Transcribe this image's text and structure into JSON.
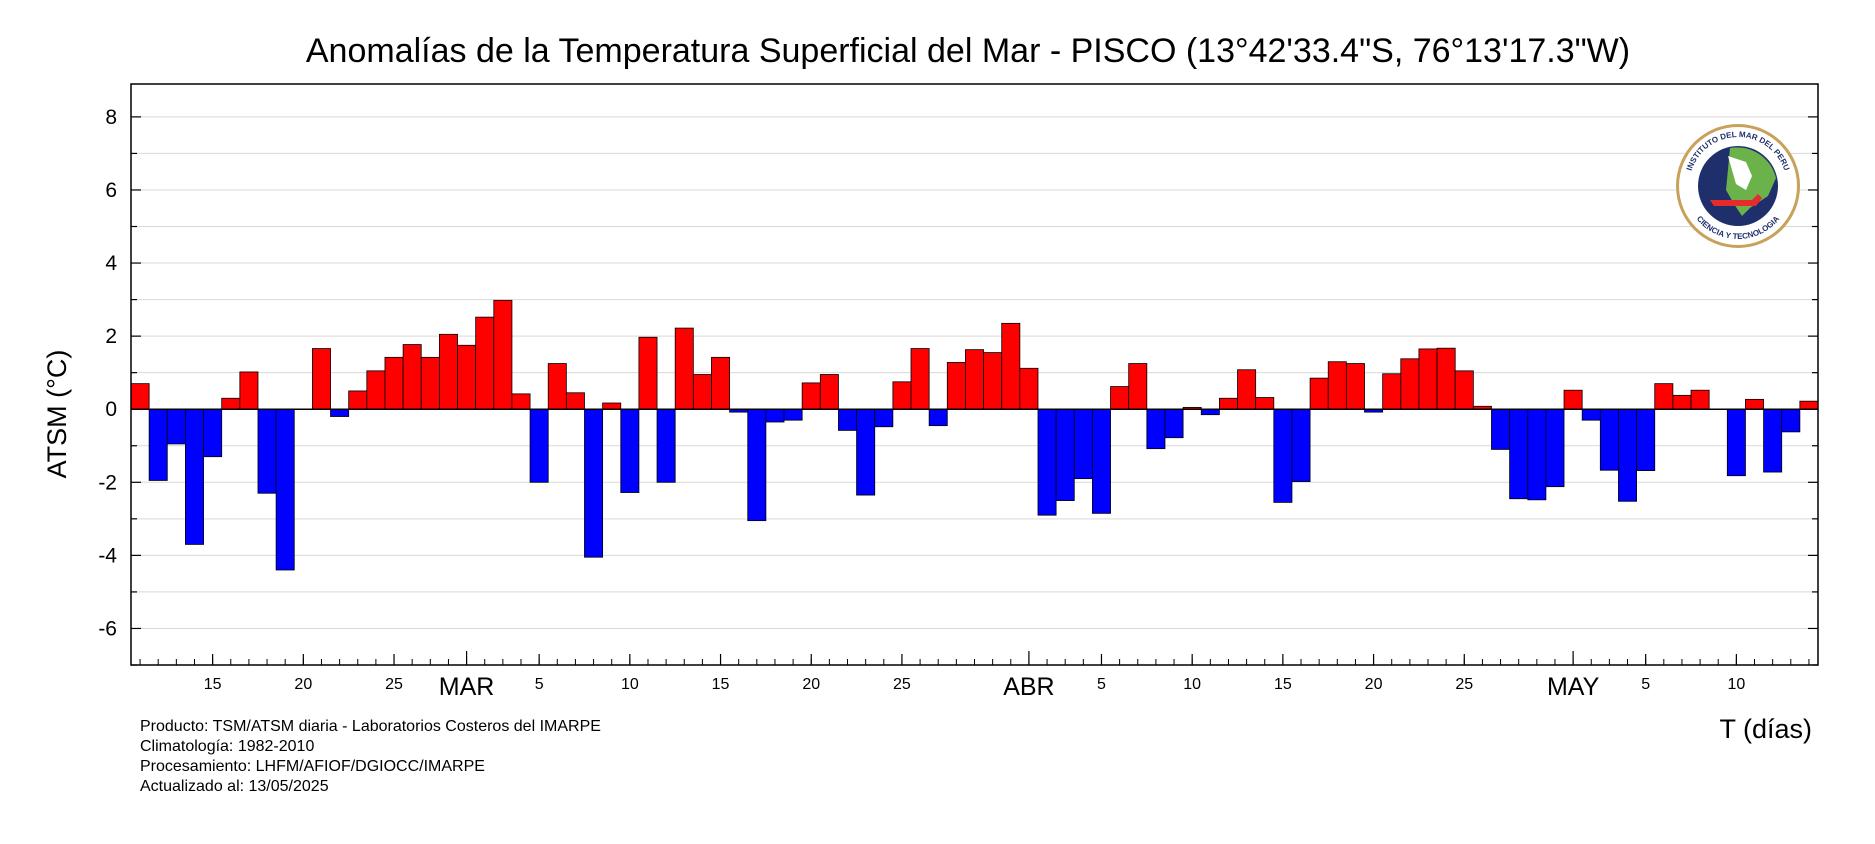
{
  "chart_data": {
    "type": "bar",
    "title": "Anomalías de la Temperatura Superficial del Mar - PISCO (13°42'33.4\"S, 76°13'17.3\"W)",
    "ylabel": "ATSM (°C)",
    "xlabel": "T (días)",
    "ylim": [
      -7,
      8.9
    ],
    "y_ticks": [
      8,
      6,
      4,
      2,
      0,
      -2,
      -4,
      -6
    ],
    "grid": true,
    "positive_color": "#ff0000",
    "negative_color": "#0000ff",
    "date_range": [
      "2025-02-11",
      "2025-05-13"
    ],
    "day_ticks": [
      {
        "date": "2025-02-15",
        "label": "15"
      },
      {
        "date": "2025-02-20",
        "label": "20"
      },
      {
        "date": "2025-02-25",
        "label": "25"
      },
      {
        "date": "2025-03-05",
        "label": "5"
      },
      {
        "date": "2025-03-10",
        "label": "10"
      },
      {
        "date": "2025-03-15",
        "label": "15"
      },
      {
        "date": "2025-03-20",
        "label": "20"
      },
      {
        "date": "2025-03-25",
        "label": "25"
      },
      {
        "date": "2025-04-05",
        "label": "5"
      },
      {
        "date": "2025-04-10",
        "label": "10"
      },
      {
        "date": "2025-04-15",
        "label": "15"
      },
      {
        "date": "2025-04-20",
        "label": "20"
      },
      {
        "date": "2025-04-25",
        "label": "25"
      },
      {
        "date": "2025-05-05",
        "label": "5"
      },
      {
        "date": "2025-05-10",
        "label": "10"
      }
    ],
    "month_labels": [
      {
        "date": "2025-03-01",
        "label": "MAR"
      },
      {
        "date": "2025-04-01",
        "label": "ABR"
      },
      {
        "date": "2025-05-01",
        "label": "MAY"
      }
    ],
    "values": [
      0.7,
      -1.95,
      -0.95,
      -3.7,
      -1.3,
      0.3,
      1.02,
      -2.3,
      -4.4,
      0,
      1.66,
      -0.2,
      0.5,
      1.05,
      1.42,
      1.77,
      1.42,
      2.05,
      1.75,
      2.52,
      2.98,
      0.42,
      -2.0,
      1.25,
      0.45,
      -4.05,
      0.17,
      -2.28,
      1.97,
      -2.0,
      2.22,
      0.95,
      1.42,
      -0.08,
      -3.05,
      -0.35,
      -0.3,
      0.72,
      0.95,
      -0.58,
      -2.35,
      -0.48,
      0.75,
      1.66,
      -0.45,
      1.28,
      1.63,
      1.55,
      2.35,
      1.12,
      -2.9,
      -2.5,
      -1.9,
      -2.85,
      0.62,
      1.25,
      -1.08,
      -0.78,
      0.05,
      -0.15,
      0.3,
      1.08,
      0.32,
      -2.55,
      -1.98,
      0.85,
      1.3,
      1.25,
      -0.08,
      0.97,
      1.38,
      1.65,
      1.67,
      1.05,
      0.08,
      -1.1,
      -2.45,
      -2.48,
      -2.12,
      0.52,
      -0.3,
      -1.67,
      -2.52,
      -1.68,
      0.7,
      0.38,
      0.52,
      0,
      -1.82,
      0.27,
      -1.72,
      -0.62,
      0.22
    ]
  },
  "footer": {
    "producto": "Producto: TSM/ATSM diaria - Laboratorios Costeros del IMARPE",
    "climatologia": "Climatología: 1982-2010",
    "procesamiento": "Procesamiento: LHFM/AFIOF/DGIOCC/IMARPE",
    "actualizado": "Actualizado al: 13/05/2025"
  },
  "logo": {
    "icon": "imarpe-seal-icon",
    "text_top": "INSTITUTO DEL MAR DEL PERU",
    "text_bottom": "CIENCIA Y TECNOLOGIA"
  }
}
